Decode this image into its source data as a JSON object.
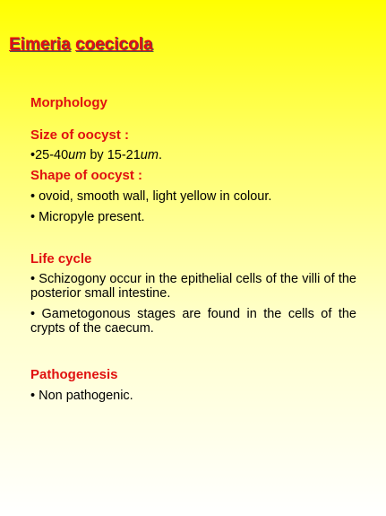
{
  "title": {
    "genus": "Eimeria",
    "species": "coecicola"
  },
  "sections": {
    "morphology": {
      "heading": "Morphology",
      "size_label": "Size of oocyst :",
      "size_value": {
        "prefix": "•25-40",
        "unit1": "um",
        "middle": " by 15-21",
        "unit2": "um",
        "suffix": "."
      },
      "shape_label": "Shape of oocyst :",
      "bullets": [
        "• ovoid, smooth wall, light yellow in colour.",
        "• Micropyle present."
      ]
    },
    "life_cycle": {
      "heading": "Life cycle",
      "bullets": [
        "• Schizogony occur in the epithelial cells of the villi of the posterior small intestine.",
        "• Gametogonous stages are found in the cells of the crypts of the caecum."
      ]
    },
    "pathogenesis": {
      "heading": "Pathogenesis",
      "bullets": [
        "• Non pathogenic."
      ]
    }
  }
}
